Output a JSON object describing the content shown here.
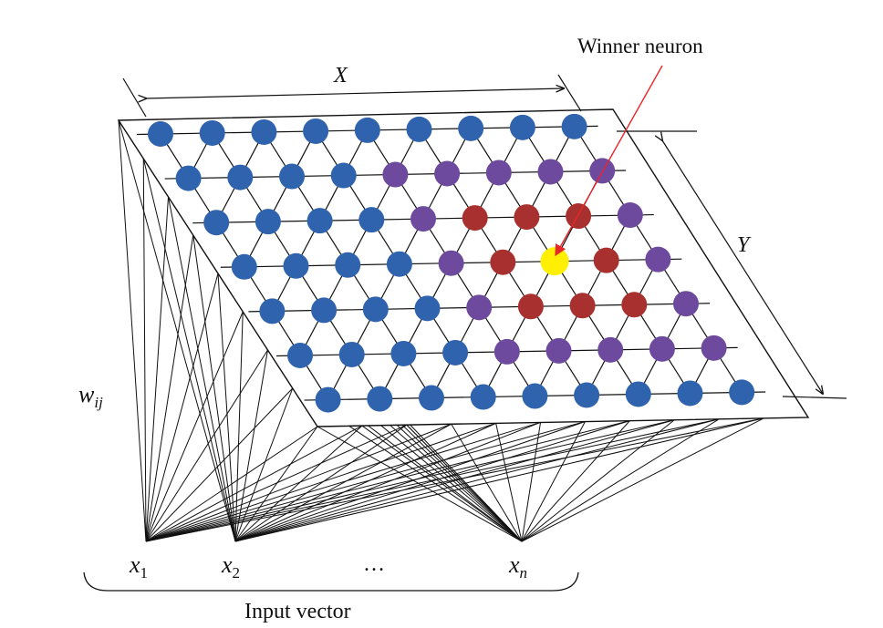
{
  "labels": {
    "winner": "Winner neuron",
    "x_dim": "X",
    "y_dim": "Y",
    "weight_main": "w",
    "weight_sub": "ij",
    "inputs": [
      {
        "main": "x",
        "sub": "1"
      },
      {
        "main": "x",
        "sub": "2"
      },
      {
        "main": "x",
        "sub": "n"
      }
    ],
    "ellipsis": "…",
    "input_vector": "Input vector"
  },
  "colors": {
    "blue": "#2f63ae",
    "purple": "#6e4a9e",
    "red": "#a8302e",
    "winner": "#ffef00",
    "arrow": "#e8262a"
  },
  "grid": {
    "rows": [
      "BBBBBBBBB",
      "BBBBPPPPP",
      "BBBBPRRRP",
      "BBBBPRWRP",
      "BBBBPRRRP",
      "BBBBPPPPP",
      "BBBBBBBBB"
    ]
  }
}
